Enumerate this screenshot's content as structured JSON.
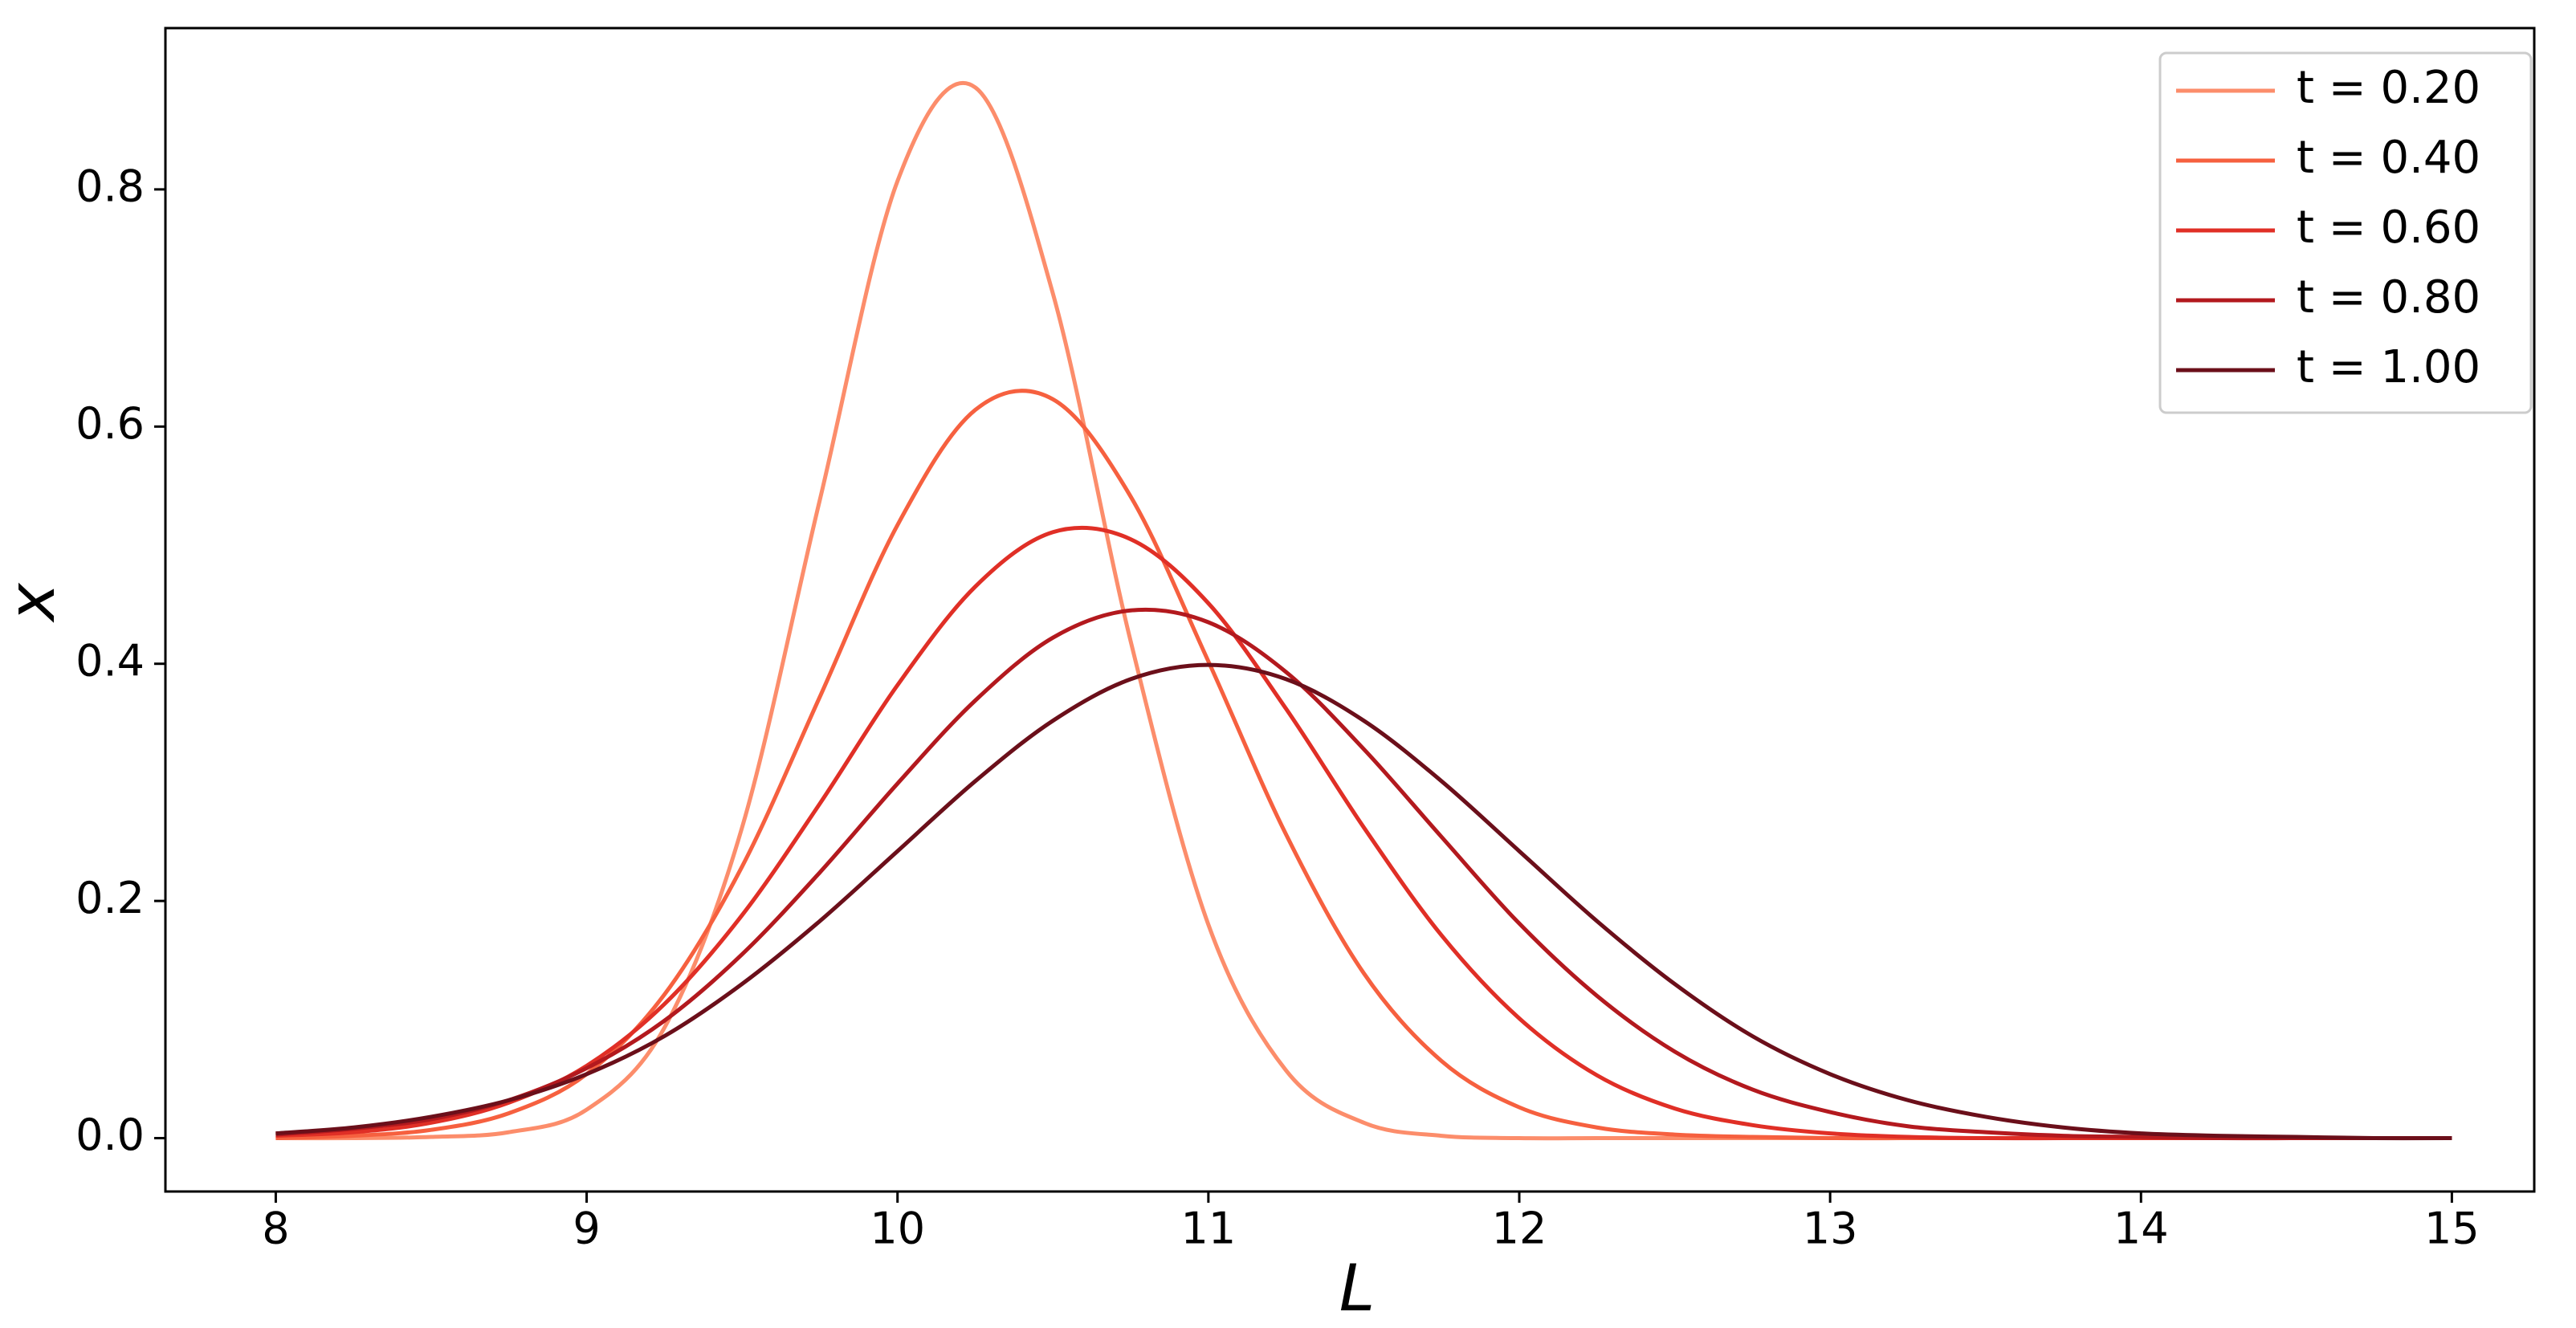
{
  "chart_data": {
    "type": "line",
    "xlabel": "L",
    "ylabel": "x",
    "x": [
      8.0,
      8.25,
      8.5,
      8.75,
      9.0,
      9.25,
      9.5,
      9.75,
      10.0,
      10.25,
      10.5,
      10.75,
      11.0,
      11.25,
      11.5,
      11.75,
      12.0,
      12.25,
      12.5,
      12.75,
      13.0,
      13.25,
      13.5,
      13.75,
      14.0,
      14.25,
      14.5,
      14.75,
      15.0
    ],
    "series": [
      {
        "name": "t  = 0.20",
        "color": "#fc8d6b",
        "values": [
          0.0,
          0.0,
          0.001,
          0.005,
          0.024,
          0.093,
          0.262,
          0.538,
          0.807,
          0.886,
          0.712,
          0.419,
          0.18,
          0.057,
          0.013,
          0.002,
          0.0,
          0.0,
          0.0,
          0.0,
          0.0,
          0.0,
          0.0,
          0.0,
          0.0,
          0.0,
          0.0,
          0.0,
          0.0
        ]
      },
      {
        "name": "t  = 0.40",
        "color": "#f6603f",
        "values": [
          0.0,
          0.002,
          0.007,
          0.021,
          0.054,
          0.121,
          0.229,
          0.372,
          0.517,
          0.614,
          0.623,
          0.541,
          0.402,
          0.256,
          0.139,
          0.065,
          0.026,
          0.009,
          0.003,
          0.001,
          0.0,
          0.0,
          0.0,
          0.0,
          0.0,
          0.0,
          0.0,
          0.0,
          0.0
        ]
      },
      {
        "name": "t  = 0.60",
        "color": "#e02f26",
        "values": [
          0.002,
          0.005,
          0.013,
          0.03,
          0.061,
          0.113,
          0.188,
          0.282,
          0.382,
          0.465,
          0.511,
          0.505,
          0.451,
          0.362,
          0.262,
          0.171,
          0.101,
          0.053,
          0.025,
          0.011,
          0.004,
          0.001,
          0.0,
          0.0,
          0.0,
          0.0,
          0.0,
          0.0,
          0.0
        ]
      },
      {
        "name": "t  = 0.80",
        "color": "#b3191e",
        "values": [
          0.003,
          0.008,
          0.016,
          0.032,
          0.059,
          0.099,
          0.155,
          0.224,
          0.299,
          0.369,
          0.422,
          0.445,
          0.435,
          0.393,
          0.328,
          0.254,
          0.181,
          0.12,
          0.073,
          0.041,
          0.022,
          0.01,
          0.005,
          0.002,
          0.001,
          0.0,
          0.0,
          0.0,
          0.0
        ]
      },
      {
        "name": "t  = 1.00",
        "color": "#6b0f1a",
        "values": [
          0.004,
          0.009,
          0.018,
          0.032,
          0.054,
          0.086,
          0.13,
          0.183,
          0.242,
          0.301,
          0.352,
          0.387,
          0.399,
          0.387,
          0.352,
          0.301,
          0.242,
          0.183,
          0.13,
          0.086,
          0.054,
          0.032,
          0.018,
          0.009,
          0.004,
          0.002,
          0.001,
          0.0,
          0.0
        ]
      }
    ],
    "xlim": [
      7.645,
      15.265
    ],
    "ylim": [
      -0.045,
      0.936
    ],
    "xticks": [
      8,
      9,
      10,
      11,
      12,
      13,
      14,
      15
    ],
    "yticks": [
      {
        "value": 0.0,
        "label": "0.0"
      },
      {
        "value": 0.2,
        "label": "0.2"
      },
      {
        "value": 0.4,
        "label": "0.4"
      },
      {
        "value": 0.6,
        "label": "0.6"
      },
      {
        "value": 0.8,
        "label": "0.8"
      }
    ],
    "grid": false,
    "legend": "upper right"
  }
}
